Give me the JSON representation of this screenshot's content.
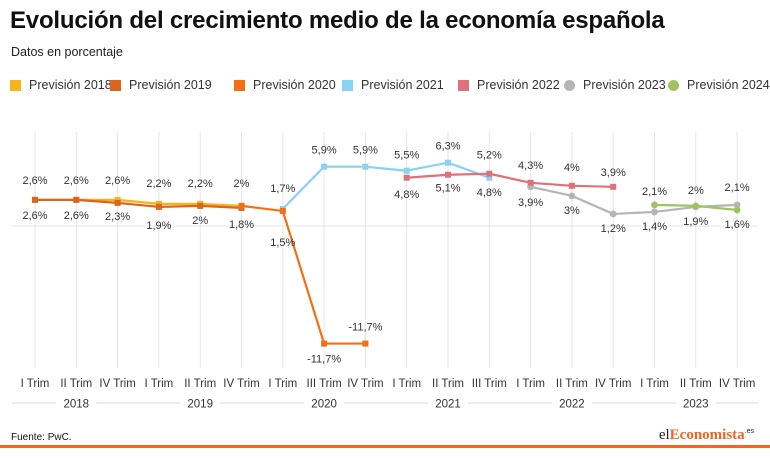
{
  "title": "Evolución del crecimiento medio de la economía española",
  "subtitle": "Datos en porcentaje",
  "source": "Fuente: PwC.",
  "brand": {
    "part1": "el",
    "part2": "Economista",
    "part3": ".es"
  },
  "chart_data": {
    "type": "line",
    "title": "Evolución del crecimiento medio de la economía española",
    "ylabel": "Datos en porcentaje",
    "ylim": [
      -14,
      9
    ],
    "categories": [
      "I Trim",
      "II Trim",
      "IV Trim",
      "I Trim",
      "II Trim",
      "IV Trim",
      "I Trim",
      "III Trim",
      "IV Trim",
      "I Trim",
      "II Trim",
      "III Trim",
      "I Trim",
      "II Trim",
      "IV Trim",
      "I Trim",
      "II Trim",
      "IV Trim"
    ],
    "years": [
      {
        "label": "2018",
        "start": 0,
        "end": 2
      },
      {
        "label": "2019",
        "start": 3,
        "end": 5
      },
      {
        "label": "2020",
        "start": 6,
        "end": 8
      },
      {
        "label": "2021",
        "start": 9,
        "end": 11
      },
      {
        "label": "2022",
        "start": 12,
        "end": 14
      },
      {
        "label": "2023",
        "start": 15,
        "end": 17
      }
    ],
    "series": [
      {
        "name": "Previsión 2018",
        "color": "#f9b31c",
        "marker": "square",
        "x": [
          0,
          1,
          2,
          3,
          4,
          5
        ],
        "values": [
          2.6,
          2.6,
          2.6,
          2.2,
          2.2,
          2.0
        ],
        "labels": [
          "2,6%",
          "2,6%",
          "2,6%",
          "2,2%",
          "2,2%",
          "2%"
        ],
        "label_pos": "above"
      },
      {
        "name": "Previsión 2019",
        "color": "#d9661c",
        "marker": "square",
        "x": [
          0,
          1,
          2,
          3,
          4,
          5
        ],
        "values": [
          2.6,
          2.6,
          2.3,
          1.9,
          2.0,
          1.8
        ],
        "labels": [
          "2,6%",
          "2,6%",
          "2,3%",
          "1,9%",
          "2%",
          "1,8%"
        ],
        "label_pos": "below"
      },
      {
        "name": "Previsión 2020",
        "color": "#f36f14",
        "marker": "square",
        "x": [
          5,
          6,
          7,
          8
        ],
        "values": [
          2.0,
          1.5,
          -11.7,
          -11.7
        ],
        "labels": [
          null,
          "1,5%",
          "-11,7%",
          "-11,7%"
        ],
        "label_pos": "custom"
      },
      {
        "name": "Previsión 2021",
        "color": "#87d3f1",
        "marker": "square",
        "x": [
          6,
          7,
          8,
          9,
          10,
          11
        ],
        "values": [
          1.7,
          5.9,
          5.9,
          5.5,
          6.3,
          4.8
        ],
        "labels": [
          "1,7%",
          "5,9%",
          "5,9%",
          "5,5%",
          "6,3%",
          "4,8%"
        ],
        "label_pos": "above"
      },
      {
        "name": "Previsión 2022",
        "color": "#e0707a",
        "marker": "square",
        "x": [
          9,
          10,
          11,
          12,
          13,
          14
        ],
        "values": [
          4.8,
          5.1,
          5.2,
          4.3,
          4.0,
          3.9
        ],
        "labels": [
          "4,8%",
          "5,1%",
          "5,2%",
          "4,3%",
          "4%",
          "3,9%"
        ],
        "label_pos": "custom"
      },
      {
        "name": "Previsión 2023",
        "color": "#b5b5b5",
        "marker": "circle",
        "x": [
          12,
          13,
          14,
          15,
          16,
          17
        ],
        "values": [
          3.9,
          3.0,
          1.2,
          1.4,
          1.9,
          2.1
        ],
        "labels": [
          "3,9%",
          "3%",
          "1,2%",
          "1,4%",
          "1,9%",
          "2,1%"
        ],
        "label_pos": "custom"
      },
      {
        "name": "Previsión 2024",
        "color": "#9dc45f",
        "marker": "circle",
        "x": [
          15,
          16,
          17
        ],
        "values": [
          2.1,
          2.0,
          1.6
        ],
        "labels": [
          "2,1%",
          "2%",
          "1,6%"
        ],
        "label_pos": "custom"
      }
    ]
  }
}
